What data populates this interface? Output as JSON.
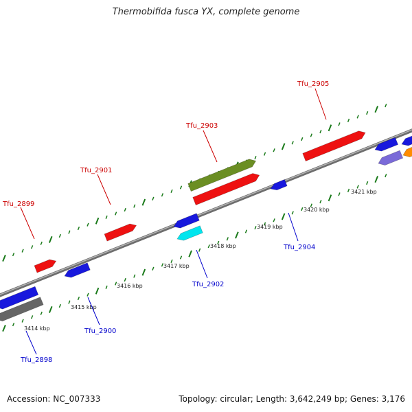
{
  "title": "Thermobifida fusca YX, complete genome",
  "footer": {
    "accession": "Accession: NC_007333",
    "topology": "Topology: circular; Length: 3,642,249 bp; Genes: 3,176"
  },
  "colors": {
    "tick": "#1a7a1a",
    "forward_label": "#cc0000",
    "reverse_label": "#0000cc",
    "backbone": "#808080"
  },
  "kbp_labels": [
    "3414 kbp",
    "3415 kbp",
    "3416 kbp",
    "3417 kbp",
    "3418 kbp",
    "3419 kbp",
    "3420 kbp",
    "3421 kbp"
  ],
  "gene_labels": [
    {
      "text": "Tfu_2899",
      "strand": "forward"
    },
    {
      "text": "Tfu_2901",
      "strand": "forward"
    },
    {
      "text": "Tfu_2903",
      "strand": "forward"
    },
    {
      "text": "Tfu_2905",
      "strand": "forward"
    },
    {
      "text": "Tfu_2898",
      "strand": "reverse"
    },
    {
      "text": "Tfu_2900",
      "strand": "reverse"
    },
    {
      "text": "Tfu_2902",
      "strand": "reverse"
    },
    {
      "text": "Tfu_2904",
      "strand": "reverse"
    }
  ],
  "features": [
    {
      "name": "gene-arrow-forward",
      "color": "#ee1111"
    },
    {
      "name": "gene-arrow-reverse",
      "color": "#1818dd"
    },
    {
      "name": "gene-arrow-olive",
      "color": "#6b8e23"
    },
    {
      "name": "gene-arrow-cyan",
      "color": "#00e5ee"
    },
    {
      "name": "gene-arrow-gray",
      "color": "#666666"
    },
    {
      "name": "gene-arrow-purple",
      "color": "#7a6ad8"
    },
    {
      "name": "gene-arrow-orange",
      "color": "#ff8c00"
    }
  ]
}
